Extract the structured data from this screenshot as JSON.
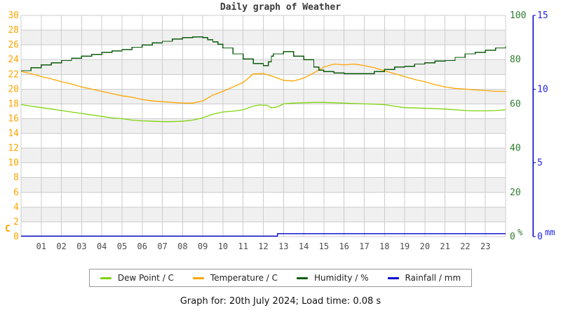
{
  "title": "Daily graph of Weather",
  "footer": "Graph for: 20th July 2024; Load time: 0.08 s",
  "legend": [
    {
      "label": "Dew Point / C",
      "color": "#7fd40c"
    },
    {
      "label": "Temperature / C",
      "color": "#ffa500"
    },
    {
      "label": "Humidity / %",
      "color": "#0e5c0e"
    },
    {
      "label": "Rainfall / mm",
      "color": "#0000cc"
    }
  ],
  "chart_data": {
    "type": "line",
    "title": "Daily graph of Weather",
    "x_ticks": [
      "01",
      "02",
      "03",
      "04",
      "05",
      "06",
      "07",
      "08",
      "09",
      "10",
      "11",
      "12",
      "13",
      "14",
      "15",
      "16",
      "17",
      "18",
      "19",
      "20",
      "21",
      "22",
      "23"
    ],
    "x_range": [
      0,
      24
    ],
    "grid": true,
    "band_colors": [
      "#ffffff",
      "#f0f0f0"
    ],
    "grid_color": "#cccccc",
    "axes": {
      "left": {
        "unit": "C",
        "min": 0,
        "max": 30,
        "step": 2,
        "label_color": "#ffa500"
      },
      "right_humidity": {
        "unit": "%",
        "min": 0,
        "max": 100,
        "step": 20,
        "label_color": "#2e7d2e"
      },
      "right_rainfall": {
        "unit": "mm",
        "min": 0,
        "max": 15,
        "step": 5,
        "label_color": "#2424e8",
        "axis_color": "#0000cc"
      }
    },
    "series": [
      {
        "name": "Dew Point / C",
        "axis": "left",
        "color": "#7fd40c",
        "style": "linear",
        "points": [
          [
            0,
            17.9
          ],
          [
            0.5,
            17.7
          ],
          [
            1,
            17.5
          ],
          [
            1.5,
            17.3
          ],
          [
            2,
            17.1
          ],
          [
            2.5,
            16.9
          ],
          [
            3,
            16.7
          ],
          [
            3.5,
            16.5
          ],
          [
            4,
            16.3
          ],
          [
            4.5,
            16.1
          ],
          [
            5,
            16.0
          ],
          [
            5.5,
            15.8
          ],
          [
            6,
            15.7
          ],
          [
            6.5,
            15.65
          ],
          [
            7,
            15.6
          ],
          [
            7.5,
            15.6
          ],
          [
            8,
            15.65
          ],
          [
            8.5,
            15.8
          ],
          [
            9,
            16.1
          ],
          [
            9.5,
            16.6
          ],
          [
            10,
            16.9
          ],
          [
            10.5,
            17.0
          ],
          [
            11,
            17.2
          ],
          [
            11.5,
            17.7
          ],
          [
            11.8,
            17.85
          ],
          [
            12.2,
            17.8
          ],
          [
            12.4,
            17.45
          ],
          [
            12.7,
            17.6
          ],
          [
            13,
            18.0
          ],
          [
            13.5,
            18.1
          ],
          [
            14,
            18.15
          ],
          [
            14.5,
            18.2
          ],
          [
            15,
            18.2
          ],
          [
            15.5,
            18.15
          ],
          [
            16,
            18.1
          ],
          [
            16.5,
            18.05
          ],
          [
            17,
            18.0
          ],
          [
            17.5,
            17.95
          ],
          [
            18,
            17.9
          ],
          [
            18.5,
            17.7
          ],
          [
            19,
            17.5
          ],
          [
            19.5,
            17.45
          ],
          [
            20,
            17.4
          ],
          [
            20.5,
            17.35
          ],
          [
            21,
            17.3
          ],
          [
            21.5,
            17.2
          ],
          [
            22,
            17.1
          ],
          [
            22.5,
            17.05
          ],
          [
            23,
            17.05
          ],
          [
            23.5,
            17.1
          ],
          [
            24,
            17.2
          ]
        ]
      },
      {
        "name": "Temperature / C",
        "axis": "left",
        "color": "#ffa500",
        "style": "linear",
        "points": [
          [
            0,
            22.4
          ],
          [
            0.5,
            22.1
          ],
          [
            1,
            21.7
          ],
          [
            1.5,
            21.4
          ],
          [
            2,
            21.0
          ],
          [
            2.5,
            20.7
          ],
          [
            3,
            20.3
          ],
          [
            3.5,
            20.0
          ],
          [
            4,
            19.7
          ],
          [
            4.5,
            19.4
          ],
          [
            5,
            19.1
          ],
          [
            5.5,
            18.9
          ],
          [
            6,
            18.6
          ],
          [
            6.5,
            18.4
          ],
          [
            7,
            18.3
          ],
          [
            7.5,
            18.2
          ],
          [
            8,
            18.1
          ],
          [
            8.5,
            18.1
          ],
          [
            9,
            18.4
          ],
          [
            9.5,
            19.2
          ],
          [
            10,
            19.7
          ],
          [
            10.5,
            20.3
          ],
          [
            11,
            20.9
          ],
          [
            11.5,
            22.05
          ],
          [
            12,
            22.1
          ],
          [
            12.5,
            21.7
          ],
          [
            13,
            21.2
          ],
          [
            13.5,
            21.1
          ],
          [
            14,
            21.5
          ],
          [
            14.5,
            22.2
          ],
          [
            15,
            23.0
          ],
          [
            15.5,
            23.4
          ],
          [
            16,
            23.3
          ],
          [
            16.5,
            23.4
          ],
          [
            17,
            23.2
          ],
          [
            17.5,
            22.9
          ],
          [
            18,
            22.5
          ],
          [
            18.5,
            22.1
          ],
          [
            19,
            21.7
          ],
          [
            19.5,
            21.3
          ],
          [
            20,
            21.0
          ],
          [
            20.5,
            20.6
          ],
          [
            21,
            20.3
          ],
          [
            21.5,
            20.1
          ],
          [
            22,
            20.0
          ],
          [
            22.5,
            19.9
          ],
          [
            23,
            19.8
          ],
          [
            23.5,
            19.7
          ],
          [
            24,
            19.7
          ]
        ]
      },
      {
        "name": "Humidity / %",
        "axis": "right_humidity",
        "color": "#0e5c0e",
        "style": "step",
        "points": [
          [
            0,
            75
          ],
          [
            0.5,
            76.3
          ],
          [
            1,
            77.6
          ],
          [
            1.5,
            78.6
          ],
          [
            2,
            79.6
          ],
          [
            2.5,
            80.6
          ],
          [
            3,
            81.6
          ],
          [
            3.5,
            82.3
          ],
          [
            4,
            83.3
          ],
          [
            4.5,
            84
          ],
          [
            5,
            84.6
          ],
          [
            5.5,
            85.6
          ],
          [
            6,
            86.6
          ],
          [
            6.5,
            87.6
          ],
          [
            7,
            88.3
          ],
          [
            7.5,
            89.3
          ],
          [
            8,
            90
          ],
          [
            8.5,
            90.3
          ],
          [
            9,
            90
          ],
          [
            9.25,
            89
          ],
          [
            9.5,
            88
          ],
          [
            9.75,
            87
          ],
          [
            10,
            85.3
          ],
          [
            10.5,
            82.6
          ],
          [
            11,
            80.3
          ],
          [
            11.5,
            78.3
          ],
          [
            12,
            77.3
          ],
          [
            12.25,
            79
          ],
          [
            12.4,
            81.6
          ],
          [
            12.5,
            82.6
          ],
          [
            13,
            83.6
          ],
          [
            13.5,
            81.6
          ],
          [
            14,
            80
          ],
          [
            14.5,
            76.6
          ],
          [
            14.75,
            75.3
          ],
          [
            15,
            74.6
          ],
          [
            15.5,
            74
          ],
          [
            16,
            73.6
          ],
          [
            16.5,
            73.6
          ],
          [
            17,
            73.6
          ],
          [
            17.5,
            74.6
          ],
          [
            18,
            75.6
          ],
          [
            18.5,
            76.6
          ],
          [
            19,
            77
          ],
          [
            19.5,
            78
          ],
          [
            20,
            78.6
          ],
          [
            20.5,
            79.3
          ],
          [
            21,
            79.6
          ],
          [
            21.5,
            81
          ],
          [
            22,
            82.6
          ],
          [
            22.5,
            83.3
          ],
          [
            23,
            84.3
          ],
          [
            23.5,
            85.3
          ],
          [
            24,
            86
          ]
        ]
      },
      {
        "name": "Rainfall / mm",
        "axis": "right_rainfall",
        "color": "#0000cc",
        "style": "linear",
        "points": [
          [
            0,
            0
          ],
          [
            12.7,
            0
          ],
          [
            12.7,
            0.2
          ],
          [
            24,
            0.2
          ]
        ]
      }
    ]
  }
}
